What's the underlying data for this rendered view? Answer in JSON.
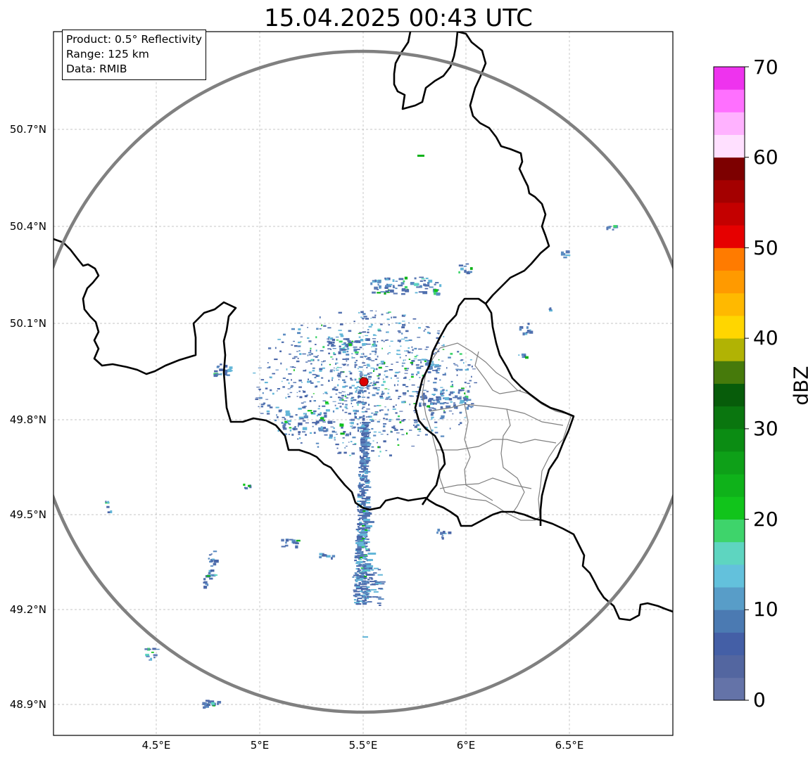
{
  "title": "15.04.2025 00:43 UTC",
  "info": {
    "product": "Product: 0.5° Reflectivity",
    "range": "Range: 125 km",
    "source": "Data: RMIB"
  },
  "axes": {
    "lat_ticks": [
      "50.7°N",
      "50.4°N",
      "50.1°N",
      "49.8°N",
      "49.5°N",
      "49.2°N",
      "48.9°N"
    ],
    "lon_ticks": [
      "4.5°E",
      "5°E",
      "5.5°E",
      "6°E",
      "6.5°E"
    ]
  },
  "colorbar": {
    "label": "dBZ",
    "ticks": [
      "0",
      "10",
      "20",
      "30",
      "40",
      "50",
      "60",
      "70"
    ],
    "range": [
      0,
      70
    ],
    "step": 2.5,
    "colors": [
      "#6473a8",
      "#5366a0",
      "#445fa6",
      "#4b7ab2",
      "#589dc8",
      "#63c1dc",
      "#5ed5c0",
      "#3ed46b",
      "#11c41b",
      "#0fb21a",
      "#0ea018",
      "#0b8c13",
      "#0a760f",
      "#075c0a",
      "#467a0b",
      "#b1b304",
      "#ffd600",
      "#ffb900",
      "#ff9a00",
      "#ff7b00",
      "#e60000",
      "#c40000",
      "#a40000",
      "#7d0000",
      "#ffe0ff",
      "#ffb2ff",
      "#ff70ff",
      "#ee33ee"
    ]
  },
  "colors": {
    "range_ring": "#808080",
    "national_border": "#000000",
    "regional_border": "#808080",
    "radar_site": "#dd0000",
    "grid": "#b4b4b4"
  }
}
